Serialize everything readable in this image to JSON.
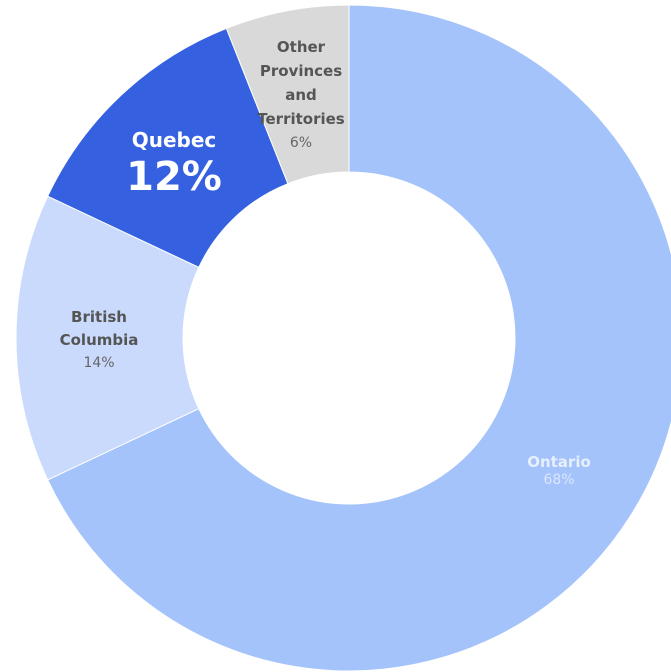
{
  "chart_data": {
    "type": "donut",
    "categories": [
      "Ontario",
      "British Columbia",
      "Quebec",
      "Other Provinces and Territories"
    ],
    "values": [
      68,
      14,
      12,
      6
    ],
    "value_labels": [
      "68%",
      "14%",
      "12%",
      "6%"
    ],
    "colors": [
      "#a4c3fb",
      "#c9dafc",
      "#3561e1",
      "#d9d9d9"
    ]
  }
}
